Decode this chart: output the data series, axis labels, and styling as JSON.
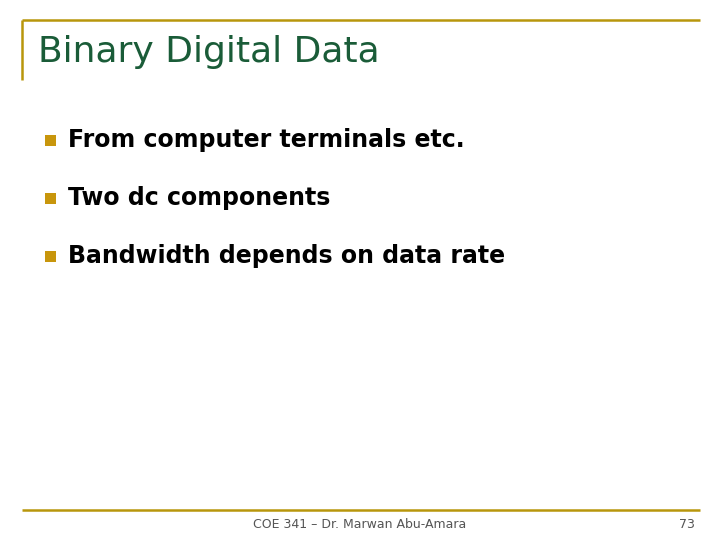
{
  "title": "Binary Digital Data",
  "title_color": "#1a5c38",
  "title_fontsize": 26,
  "title_fontweight": "normal",
  "bullet_color": "#c8960c",
  "bullet_text_color": "#000000",
  "bullet_fontsize": 17,
  "bullet_fontweight": "bold",
  "bullets": [
    "From computer terminals etc.",
    "Two dc components",
    "Bandwidth depends on data rate"
  ],
  "footer_text": "COE 341 – Dr. Marwan Abu-Amara",
  "footer_number": "73",
  "footer_fontsize": 9,
  "background_color": "#ffffff",
  "border_color": "#b8960c",
  "title_left_bar_color": "#b8960c",
  "border_linewidth": 1.8
}
